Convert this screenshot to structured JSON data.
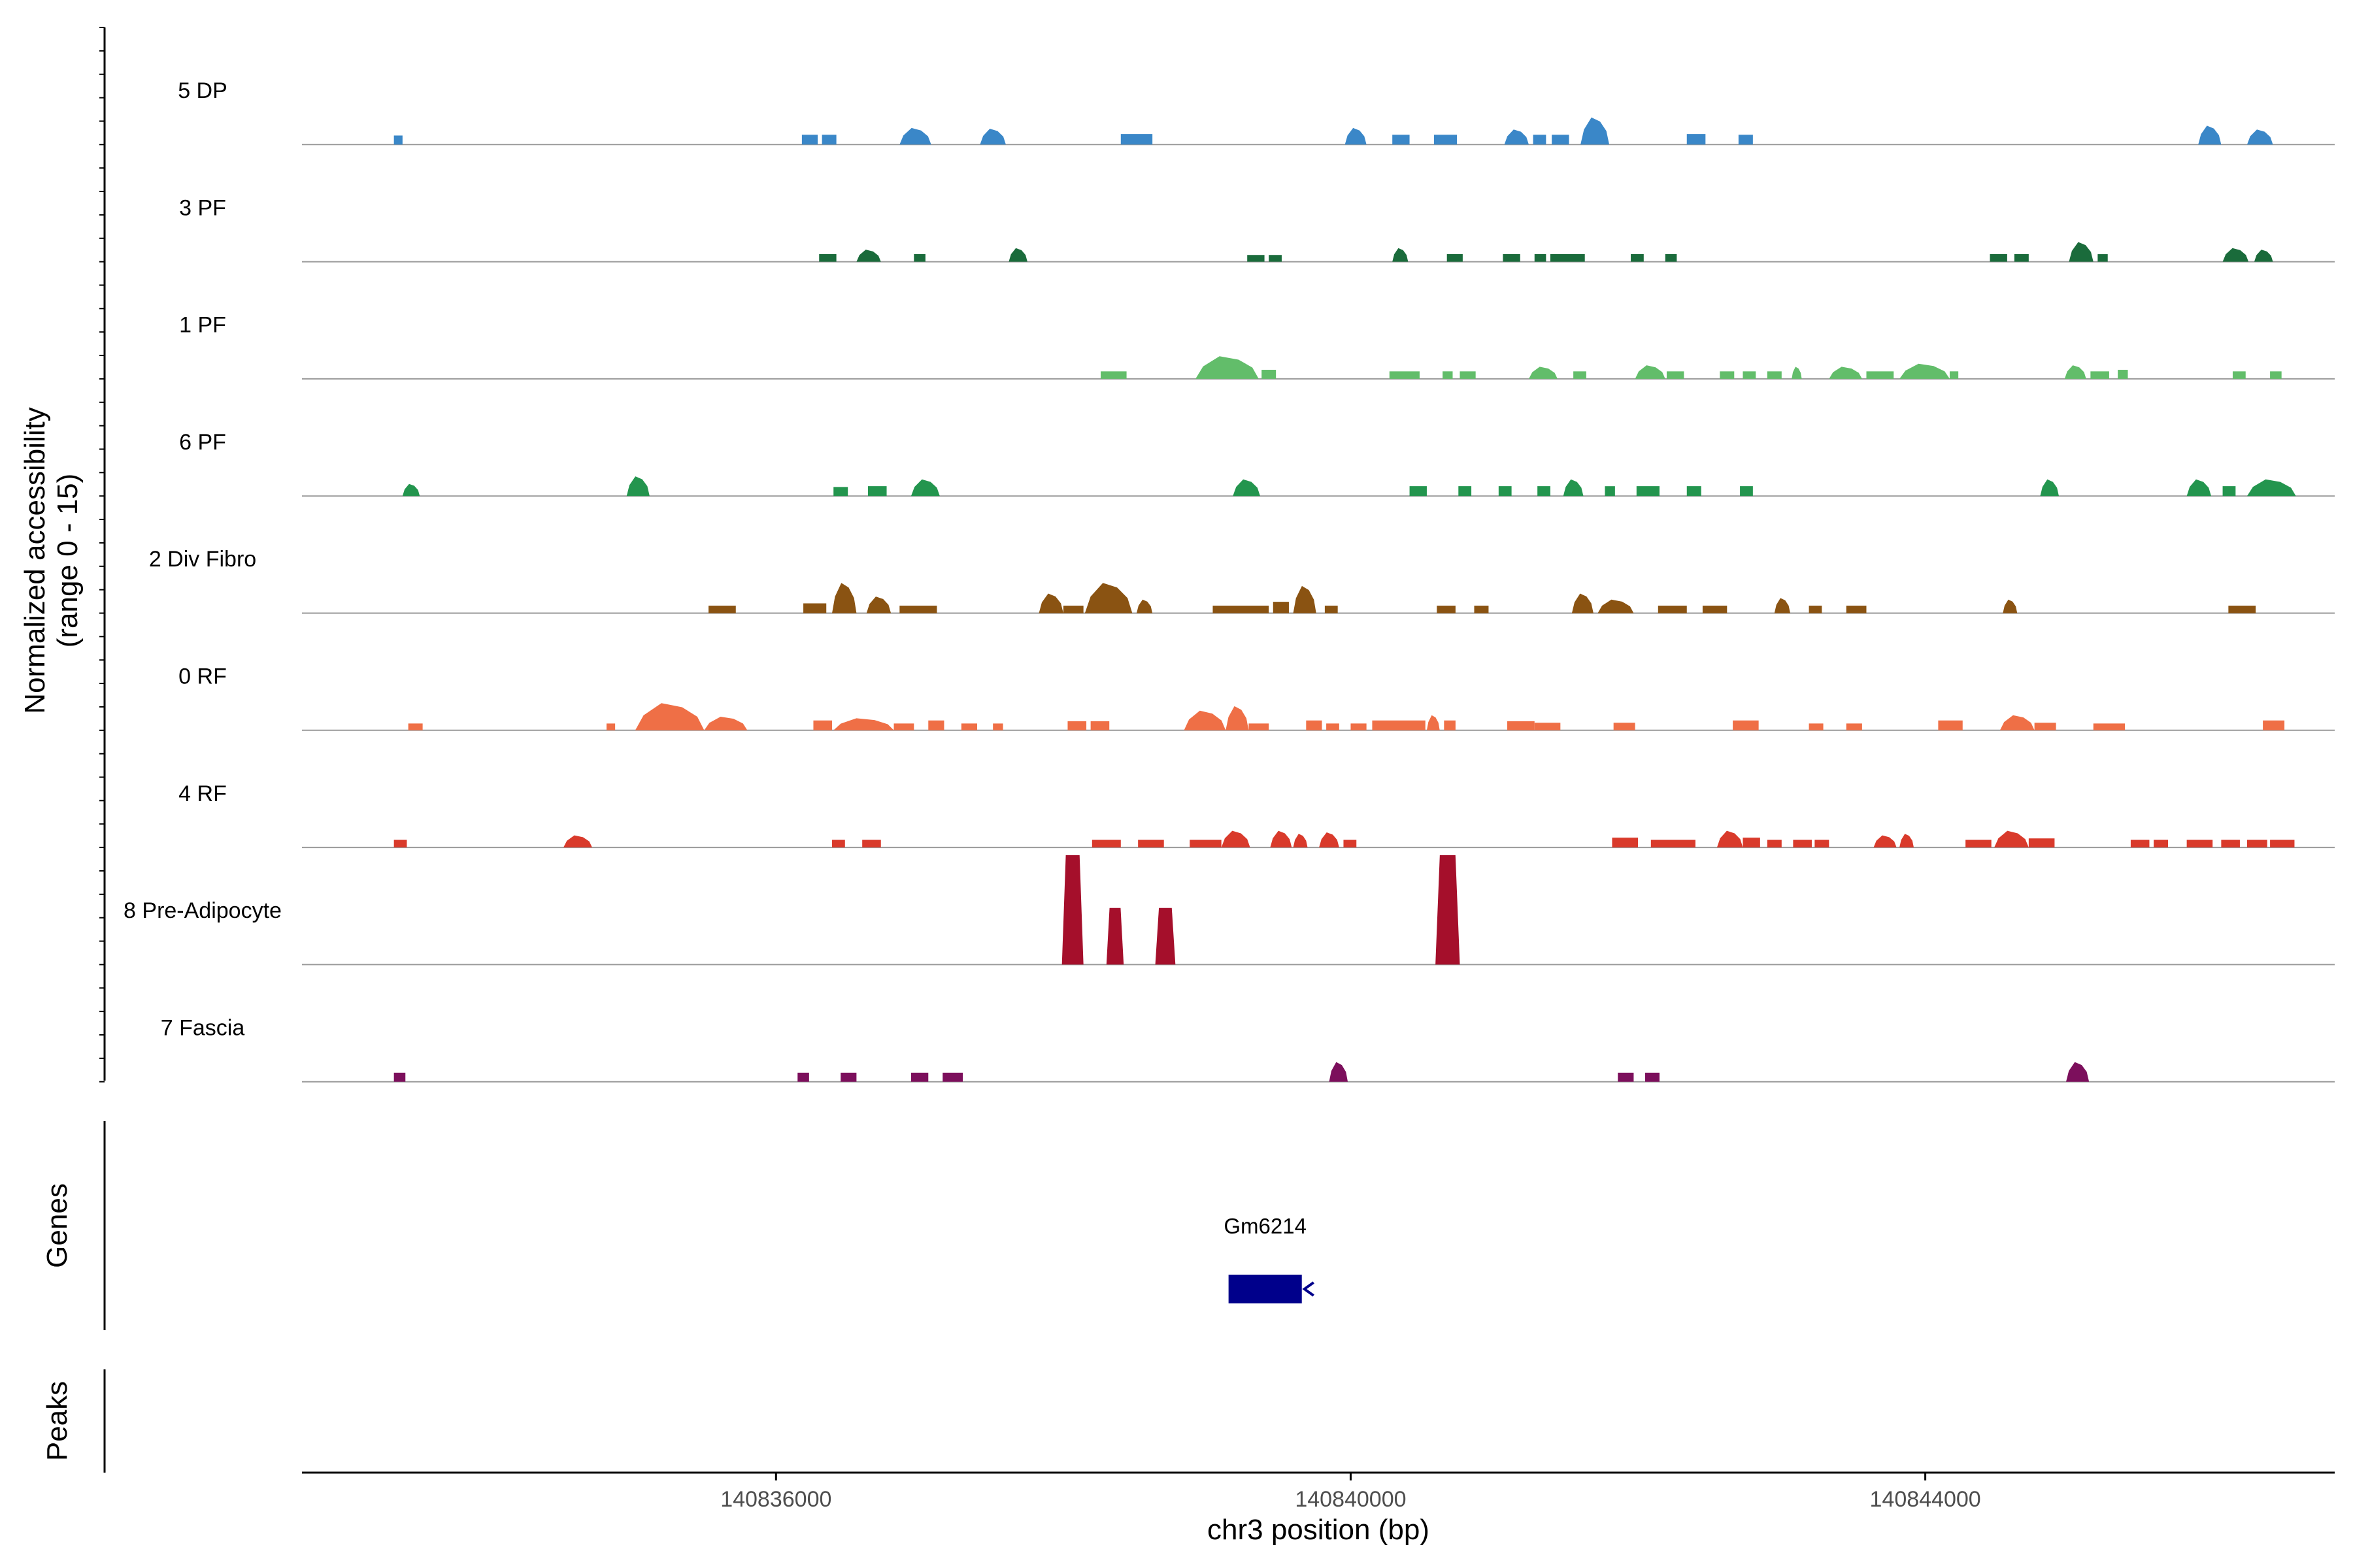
{
  "chart_data": {
    "type": "area",
    "chromosome": "chr3",
    "xlabel": "chr3 position (bp)",
    "xlim": [
      140832700,
      140846850
    ],
    "x_ticks": [
      {
        "value": 140836000,
        "label": "140836000"
      },
      {
        "value": 140840000,
        "label": "140840000"
      },
      {
        "value": 140844000,
        "label": "140844000"
      }
    ],
    "ylabel_line1": "Normalized accessibility",
    "ylabel_line2": "(range 0 - 15)",
    "ylim": [
      0,
      15
    ],
    "tracks": [
      {
        "name": "5 DP",
        "color": "#3a87c8",
        "peaks": [
          {
            "s": 140833340,
            "e": 140833400,
            "h": 1.2
          },
          {
            "s": 140836180,
            "e": 140836290,
            "h": 1.3
          },
          {
            "s": 140836320,
            "e": 140836420,
            "h": 1.3
          },
          {
            "s": 140836860,
            "e": 140837080,
            "h": 2.2
          },
          {
            "s": 140837420,
            "e": 140837600,
            "h": 2.1
          },
          {
            "s": 140838400,
            "e": 140838620,
            "h": 1.4
          },
          {
            "s": 140839960,
            "e": 140840110,
            "h": 2.2
          },
          {
            "s": 140840290,
            "e": 140840410,
            "h": 1.3
          },
          {
            "s": 140840580,
            "e": 140840740,
            "h": 1.3
          },
          {
            "s": 140841070,
            "e": 140841240,
            "h": 2.0
          },
          {
            "s": 140841270,
            "e": 140841360,
            "h": 1.3
          },
          {
            "s": 140841400,
            "e": 140841520,
            "h": 1.3
          },
          {
            "s": 140841600,
            "e": 140841800,
            "h": 3.6
          },
          {
            "s": 140842340,
            "e": 140842470,
            "h": 1.4
          },
          {
            "s": 140842700,
            "e": 140842800,
            "h": 1.3
          },
          {
            "s": 140845900,
            "e": 140846060,
            "h": 2.5
          },
          {
            "s": 140846240,
            "e": 140846420,
            "h": 2.0
          }
        ]
      },
      {
        "name": "3 PF",
        "color": "#1a6b3b",
        "peaks": [
          {
            "s": 140836300,
            "e": 140836420,
            "h": 1.0
          },
          {
            "s": 140836560,
            "e": 140836730,
            "h": 1.6
          },
          {
            "s": 140836960,
            "e": 140837040,
            "h": 1.0
          },
          {
            "s": 140837620,
            "e": 140837750,
            "h": 1.8
          },
          {
            "s": 140839280,
            "e": 140839400,
            "h": 0.9
          },
          {
            "s": 140839430,
            "e": 140839520,
            "h": 0.9
          },
          {
            "s": 140840290,
            "e": 140840400,
            "h": 1.8
          },
          {
            "s": 140840670,
            "e": 140840780,
            "h": 1.0
          },
          {
            "s": 140841060,
            "e": 140841180,
            "h": 1.0
          },
          {
            "s": 140841280,
            "e": 140841360,
            "h": 1.0
          },
          {
            "s": 140841390,
            "e": 140841630,
            "h": 1.0
          },
          {
            "s": 140841950,
            "e": 140842040,
            "h": 1.0
          },
          {
            "s": 140842190,
            "e": 140842270,
            "h": 1.0
          },
          {
            "s": 140844450,
            "e": 140844570,
            "h": 1.0
          },
          {
            "s": 140844620,
            "e": 140844720,
            "h": 1.0
          },
          {
            "s": 140845000,
            "e": 140845170,
            "h": 2.6
          },
          {
            "s": 140845200,
            "e": 140845270,
            "h": 1.0
          },
          {
            "s": 140846070,
            "e": 140846250,
            "h": 1.8
          },
          {
            "s": 140846290,
            "e": 140846420,
            "h": 1.6
          }
        ]
      },
      {
        "name": "1 PF",
        "color": "#62bd6a",
        "peaks": [
          {
            "s": 140838260,
            "e": 140838440,
            "h": 1.0
          },
          {
            "s": 140838920,
            "e": 140839360,
            "h": 3.0
          },
          {
            "s": 140839380,
            "e": 140839480,
            "h": 1.2
          },
          {
            "s": 140840270,
            "e": 140840480,
            "h": 1.0
          },
          {
            "s": 140840640,
            "e": 140840710,
            "h": 1.0
          },
          {
            "s": 140840760,
            "e": 140840870,
            "h": 1.0
          },
          {
            "s": 140841240,
            "e": 140841440,
            "h": 1.6
          },
          {
            "s": 140841550,
            "e": 140841640,
            "h": 1.0
          },
          {
            "s": 140841980,
            "e": 140842190,
            "h": 1.8
          },
          {
            "s": 140842200,
            "e": 140842320,
            "h": 1.0
          },
          {
            "s": 140842570,
            "e": 140842670,
            "h": 1.0
          },
          {
            "s": 140842730,
            "e": 140842820,
            "h": 1.0
          },
          {
            "s": 140842900,
            "e": 140843000,
            "h": 1.0
          },
          {
            "s": 140843070,
            "e": 140843140,
            "h": 1.6
          },
          {
            "s": 140843330,
            "e": 140843560,
            "h": 1.6
          },
          {
            "s": 140843590,
            "e": 140843780,
            "h": 1.0
          },
          {
            "s": 140843820,
            "e": 140844170,
            "h": 2.0
          },
          {
            "s": 140844170,
            "e": 140844230,
            "h": 1.0
          },
          {
            "s": 140844970,
            "e": 140845120,
            "h": 1.8
          },
          {
            "s": 140845150,
            "e": 140845280,
            "h": 1.0
          },
          {
            "s": 140845340,
            "e": 140845410,
            "h": 1.2
          },
          {
            "s": 140846140,
            "e": 140846230,
            "h": 1.0
          },
          {
            "s": 140846400,
            "e": 140846480,
            "h": 1.0
          }
        ]
      },
      {
        "name": "6 PF",
        "color": "#23954e",
        "peaks": [
          {
            "s": 140833400,
            "e": 140833520,
            "h": 1.6
          },
          {
            "s": 140834960,
            "e": 140835120,
            "h": 2.6
          },
          {
            "s": 140836400,
            "e": 140836500,
            "h": 1.2
          },
          {
            "s": 140836640,
            "e": 140836770,
            "h": 1.3
          },
          {
            "s": 140836940,
            "e": 140837140,
            "h": 2.2
          },
          {
            "s": 140839180,
            "e": 140839370,
            "h": 2.2
          },
          {
            "s": 140840410,
            "e": 140840530,
            "h": 1.3
          },
          {
            "s": 140840750,
            "e": 140840840,
            "h": 1.3
          },
          {
            "s": 140841030,
            "e": 140841120,
            "h": 1.3
          },
          {
            "s": 140841300,
            "e": 140841390,
            "h": 1.3
          },
          {
            "s": 140841480,
            "e": 140841620,
            "h": 2.2
          },
          {
            "s": 140841770,
            "e": 140841840,
            "h": 1.3
          },
          {
            "s": 140841990,
            "e": 140842150,
            "h": 1.3
          },
          {
            "s": 140842340,
            "e": 140842440,
            "h": 1.3
          },
          {
            "s": 140842710,
            "e": 140842800,
            "h": 1.3
          },
          {
            "s": 140844800,
            "e": 140844930,
            "h": 2.2
          },
          {
            "s": 140845820,
            "e": 140845990,
            "h": 2.2
          },
          {
            "s": 140846070,
            "e": 140846160,
            "h": 1.3
          },
          {
            "s": 140846240,
            "e": 140846580,
            "h": 2.2
          }
        ]
      },
      {
        "name": "2 Div Fibro",
        "color": "#8a5312",
        "peaks": [
          {
            "s": 140835530,
            "e": 140835720,
            "h": 1.0
          },
          {
            "s": 140836190,
            "e": 140836350,
            "h": 1.3
          },
          {
            "s": 140836390,
            "e": 140836560,
            "h": 4.0
          },
          {
            "s": 140836630,
            "e": 140836800,
            "h": 2.2
          },
          {
            "s": 140836860,
            "e": 140837120,
            "h": 1.0
          },
          {
            "s": 140837830,
            "e": 140838000,
            "h": 2.6
          },
          {
            "s": 140838000,
            "e": 140838140,
            "h": 1.0
          },
          {
            "s": 140838150,
            "e": 140838480,
            "h": 4.0
          },
          {
            "s": 140838510,
            "e": 140838620,
            "h": 1.8
          },
          {
            "s": 140839040,
            "e": 140839430,
            "h": 1.0
          },
          {
            "s": 140839460,
            "e": 140839570,
            "h": 1.5
          },
          {
            "s": 140839600,
            "e": 140839760,
            "h": 3.6
          },
          {
            "s": 140839820,
            "e": 140839910,
            "h": 1.0
          },
          {
            "s": 140840600,
            "e": 140840730,
            "h": 1.0
          },
          {
            "s": 140840860,
            "e": 140840960,
            "h": 1.0
          },
          {
            "s": 140841540,
            "e": 140841690,
            "h": 2.6
          },
          {
            "s": 140841720,
            "e": 140841970,
            "h": 1.8
          },
          {
            "s": 140842140,
            "e": 140842340,
            "h": 1.0
          },
          {
            "s": 140842450,
            "e": 140842620,
            "h": 1.0
          },
          {
            "s": 140842950,
            "e": 140843060,
            "h": 2.0
          },
          {
            "s": 140843190,
            "e": 140843280,
            "h": 1.0
          },
          {
            "s": 140843450,
            "e": 140843590,
            "h": 1.0
          },
          {
            "s": 140844540,
            "e": 140844640,
            "h": 1.8
          },
          {
            "s": 140846110,
            "e": 140846300,
            "h": 1.0
          }
        ]
      },
      {
        "name": "0 RF",
        "color": "#ef6f46",
        "peaks": [
          {
            "s": 140833440,
            "e": 140833540,
            "h": 0.9
          },
          {
            "s": 140834820,
            "e": 140834880,
            "h": 0.9
          },
          {
            "s": 140835020,
            "e": 140835500,
            "h": 3.6
          },
          {
            "s": 140835500,
            "e": 140835800,
            "h": 1.8
          },
          {
            "s": 140836260,
            "e": 140836390,
            "h": 1.3
          },
          {
            "s": 140836400,
            "e": 140836820,
            "h": 1.6
          },
          {
            "s": 140836820,
            "e": 140836960,
            "h": 0.9
          },
          {
            "s": 140837060,
            "e": 140837170,
            "h": 1.3
          },
          {
            "s": 140837290,
            "e": 140837400,
            "h": 0.9
          },
          {
            "s": 140837510,
            "e": 140837580,
            "h": 0.9
          },
          {
            "s": 140838030,
            "e": 140838160,
            "h": 1.2
          },
          {
            "s": 140838190,
            "e": 140838320,
            "h": 1.2
          },
          {
            "s": 140838840,
            "e": 140839130,
            "h": 2.6
          },
          {
            "s": 140839130,
            "e": 140839290,
            "h": 3.2
          },
          {
            "s": 140839290,
            "e": 140839430,
            "h": 0.9
          },
          {
            "s": 140839690,
            "e": 140839800,
            "h": 1.3
          },
          {
            "s": 140839830,
            "e": 140839920,
            "h": 0.9
          },
          {
            "s": 140840000,
            "e": 140840110,
            "h": 0.9
          },
          {
            "s": 140840150,
            "e": 140840520,
            "h": 1.3
          },
          {
            "s": 140840530,
            "e": 140840620,
            "h": 2.0
          },
          {
            "s": 140840650,
            "e": 140840730,
            "h": 1.3
          },
          {
            "s": 140841090,
            "e": 140841280,
            "h": 1.2
          },
          {
            "s": 140841280,
            "e": 140841460,
            "h": 1.0
          },
          {
            "s": 140841830,
            "e": 140841980,
            "h": 1.0
          },
          {
            "s": 140842660,
            "e": 140842840,
            "h": 1.3
          },
          {
            "s": 140843190,
            "e": 140843290,
            "h": 0.9
          },
          {
            "s": 140843450,
            "e": 140843560,
            "h": 0.9
          },
          {
            "s": 140844090,
            "e": 140844260,
            "h": 1.3
          },
          {
            "s": 140844520,
            "e": 140844760,
            "h": 2.0
          },
          {
            "s": 140844760,
            "e": 140844910,
            "h": 1.0
          },
          {
            "s": 140845170,
            "e": 140845390,
            "h": 0.9
          },
          {
            "s": 140846350,
            "e": 140846500,
            "h": 1.3
          }
        ]
      },
      {
        "name": "4 RF",
        "color": "#d93a2b",
        "peaks": [
          {
            "s": 140833340,
            "e": 140833430,
            "h": 1.0
          },
          {
            "s": 140834520,
            "e": 140834720,
            "h": 1.6
          },
          {
            "s": 140836390,
            "e": 140836480,
            "h": 1.0
          },
          {
            "s": 140836600,
            "e": 140836730,
            "h": 1.0
          },
          {
            "s": 140838200,
            "e": 140838400,
            "h": 1.0
          },
          {
            "s": 140838520,
            "e": 140838700,
            "h": 1.0
          },
          {
            "s": 140838880,
            "e": 140839100,
            "h": 1.0
          },
          {
            "s": 140839100,
            "e": 140839300,
            "h": 2.2
          },
          {
            "s": 140839440,
            "e": 140839590,
            "h": 2.2
          },
          {
            "s": 140839600,
            "e": 140839700,
            "h": 1.8
          },
          {
            "s": 140839780,
            "e": 140839920,
            "h": 2.0
          },
          {
            "s": 140839950,
            "e": 140840040,
            "h": 1.0
          },
          {
            "s": 140841820,
            "e": 140842000,
            "h": 1.3
          },
          {
            "s": 140842090,
            "e": 140842400,
            "h": 1.0
          },
          {
            "s": 140842550,
            "e": 140842730,
            "h": 2.2
          },
          {
            "s": 140842730,
            "e": 140842850,
            "h": 1.3
          },
          {
            "s": 140842900,
            "e": 140843000,
            "h": 1.0
          },
          {
            "s": 140843080,
            "e": 140843210,
            "h": 1.0
          },
          {
            "s": 140843230,
            "e": 140843330,
            "h": 1.0
          },
          {
            "s": 140843640,
            "e": 140843800,
            "h": 1.6
          },
          {
            "s": 140843820,
            "e": 140843920,
            "h": 1.8
          },
          {
            "s": 140844280,
            "e": 140844460,
            "h": 1.0
          },
          {
            "s": 140844480,
            "e": 140844720,
            "h": 2.2
          },
          {
            "s": 140844720,
            "e": 140844900,
            "h": 1.2
          },
          {
            "s": 140845430,
            "e": 140845560,
            "h": 1.0
          },
          {
            "s": 140845590,
            "e": 140845690,
            "h": 1.0
          },
          {
            "s": 140845820,
            "e": 140846000,
            "h": 1.0
          },
          {
            "s": 140846060,
            "e": 140846190,
            "h": 1.0
          },
          {
            "s": 140846240,
            "e": 140846380,
            "h": 1.0
          },
          {
            "s": 140846400,
            "e": 140846570,
            "h": 1.0
          }
        ]
      },
      {
        "name": "8 Pre-Adipocyte",
        "color": "#a50f2b",
        "peaks": [
          {
            "s": 140837990,
            "e": 140838140,
            "h": 14.5
          },
          {
            "s": 140838300,
            "e": 140838420,
            "h": 7.5
          },
          {
            "s": 140838640,
            "e": 140838780,
            "h": 7.5
          },
          {
            "s": 140840590,
            "e": 140840760,
            "h": 14.5
          }
        ]
      },
      {
        "name": "7 Fascia",
        "color": "#7c0f5c",
        "peaks": [
          {
            "s": 140833340,
            "e": 140833420,
            "h": 1.2
          },
          {
            "s": 140836150,
            "e": 140836230,
            "h": 1.2
          },
          {
            "s": 140836450,
            "e": 140836560,
            "h": 1.2
          },
          {
            "s": 140836940,
            "e": 140837060,
            "h": 1.2
          },
          {
            "s": 140837160,
            "e": 140837300,
            "h": 1.2
          },
          {
            "s": 140839850,
            "e": 140839980,
            "h": 2.6
          },
          {
            "s": 140841860,
            "e": 140841970,
            "h": 1.2
          },
          {
            "s": 140842050,
            "e": 140842150,
            "h": 1.2
          },
          {
            "s": 140844980,
            "e": 140845140,
            "h": 2.6
          }
        ]
      }
    ],
    "genes": [
      {
        "name": "Gm6214",
        "start": 140839150,
        "end": 140839660,
        "strand": "-",
        "color": "#00008b"
      }
    ],
    "genes_track_label": "Genes",
    "peaks_track_label": "Peaks"
  }
}
